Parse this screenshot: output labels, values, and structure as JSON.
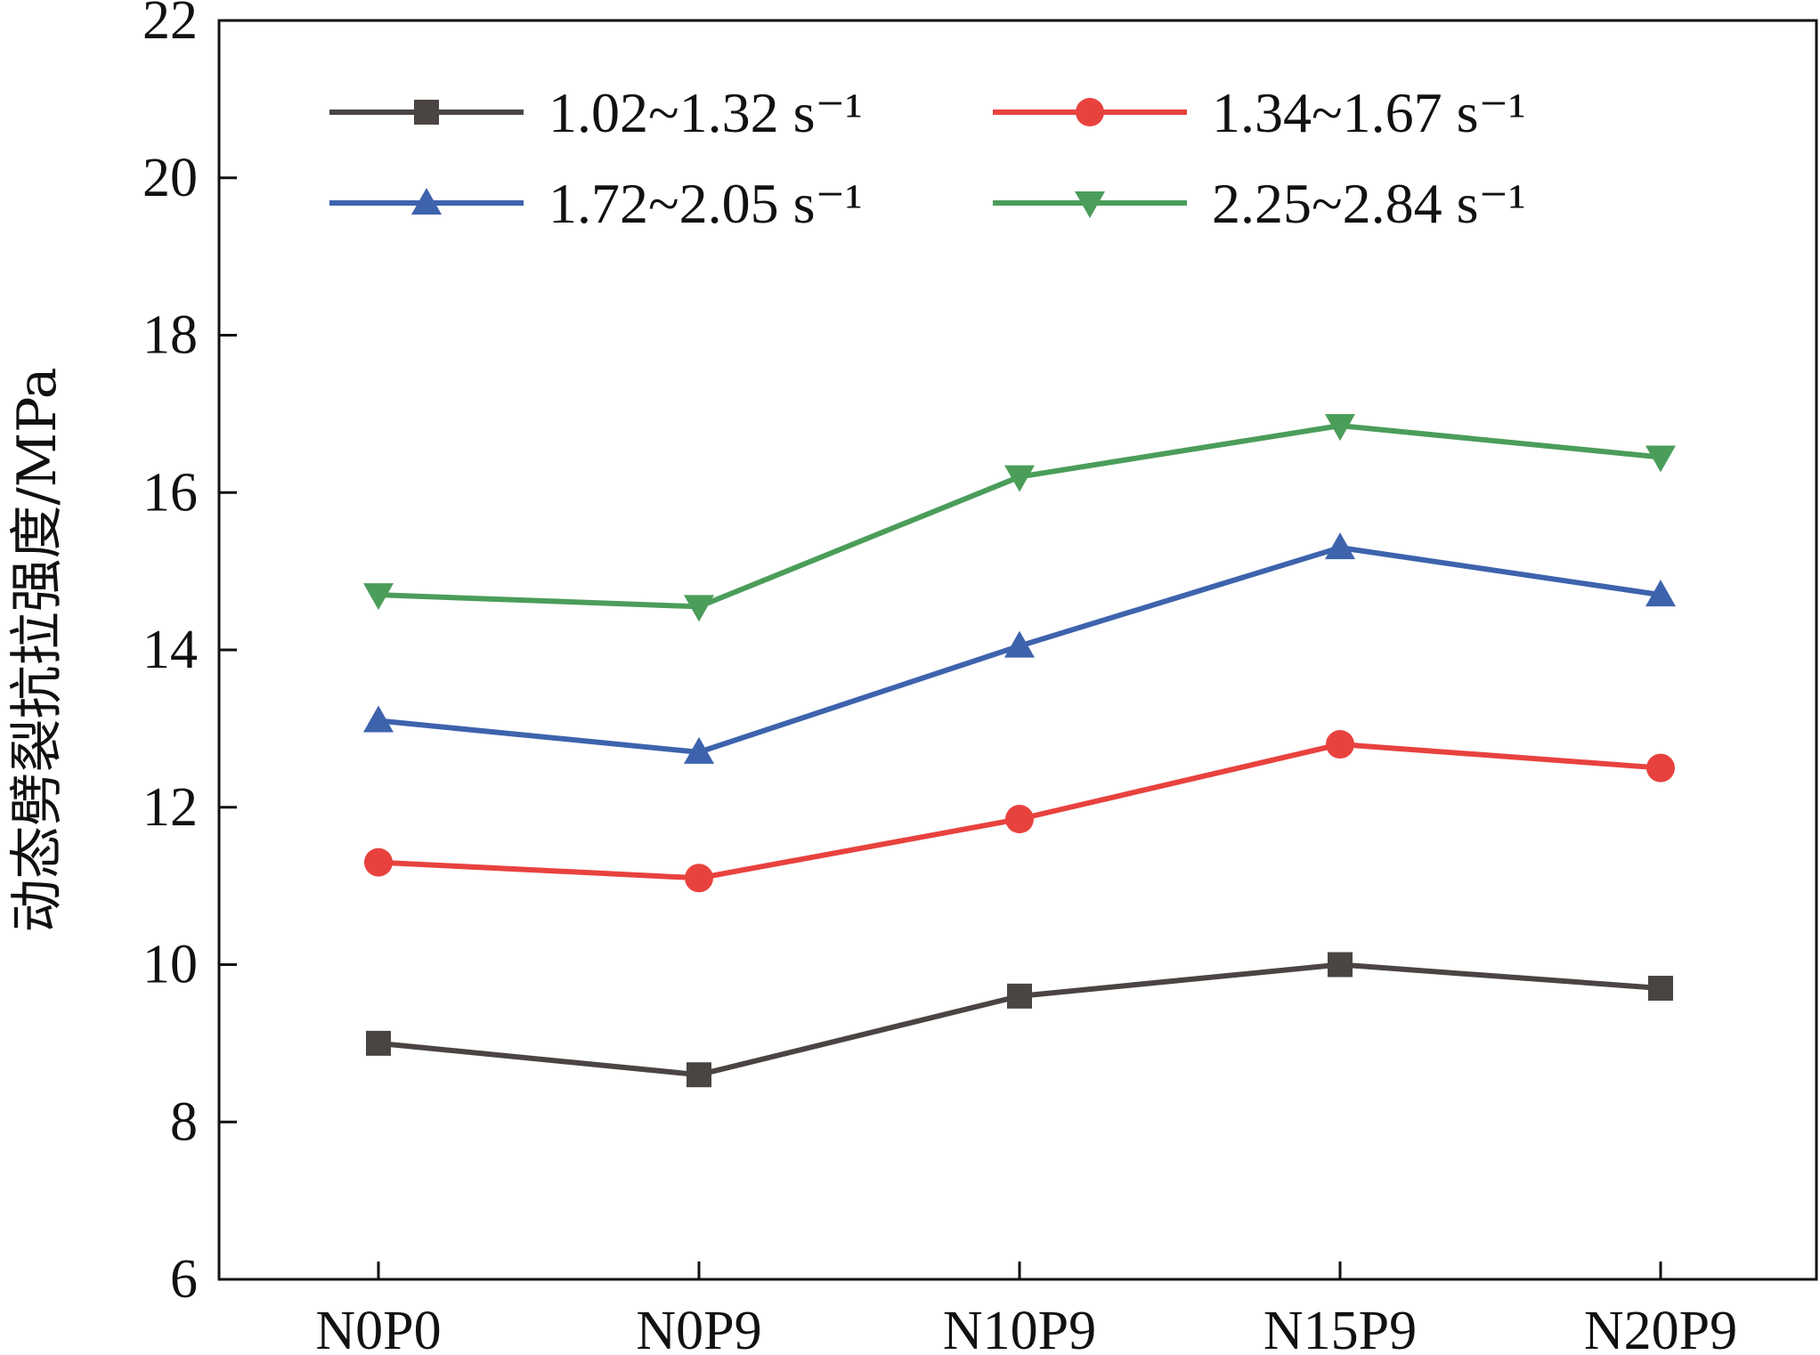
{
  "chart_data": {
    "type": "line",
    "title": "",
    "xlabel": "",
    "ylabel": "动态劈裂抗拉强度/MPa",
    "categories": [
      "N0P0",
      "N0P9",
      "N10P9",
      "N15P9",
      "N20P9"
    ],
    "ylim": [
      6,
      22
    ],
    "yticks": [
      "6",
      "8",
      "10",
      "12",
      "14",
      "16",
      "18",
      "20",
      "22"
    ],
    "grid": false,
    "legend_position": "top",
    "series": [
      {
        "name": "1.02~1.32 s⁻¹",
        "values": [
          9.0,
          8.6,
          9.6,
          10.0,
          9.7
        ],
        "color": "#4a4543",
        "marker": "square"
      },
      {
        "name": "1.34~1.67 s⁻¹",
        "values": [
          11.3,
          11.1,
          11.85,
          12.8,
          12.5
        ],
        "color": "#e8423f",
        "marker": "circle"
      },
      {
        "name": "1.72~2.05 s⁻¹",
        "values": [
          13.1,
          12.7,
          14.05,
          15.3,
          14.7
        ],
        "color": "#3e63ad",
        "marker": "triangle-up"
      },
      {
        "name": "2.25~2.84 s⁻¹",
        "values": [
          14.7,
          14.55,
          16.2,
          16.85,
          16.45
        ],
        "color": "#4b9d5a",
        "marker": "triangle-down"
      }
    ]
  }
}
